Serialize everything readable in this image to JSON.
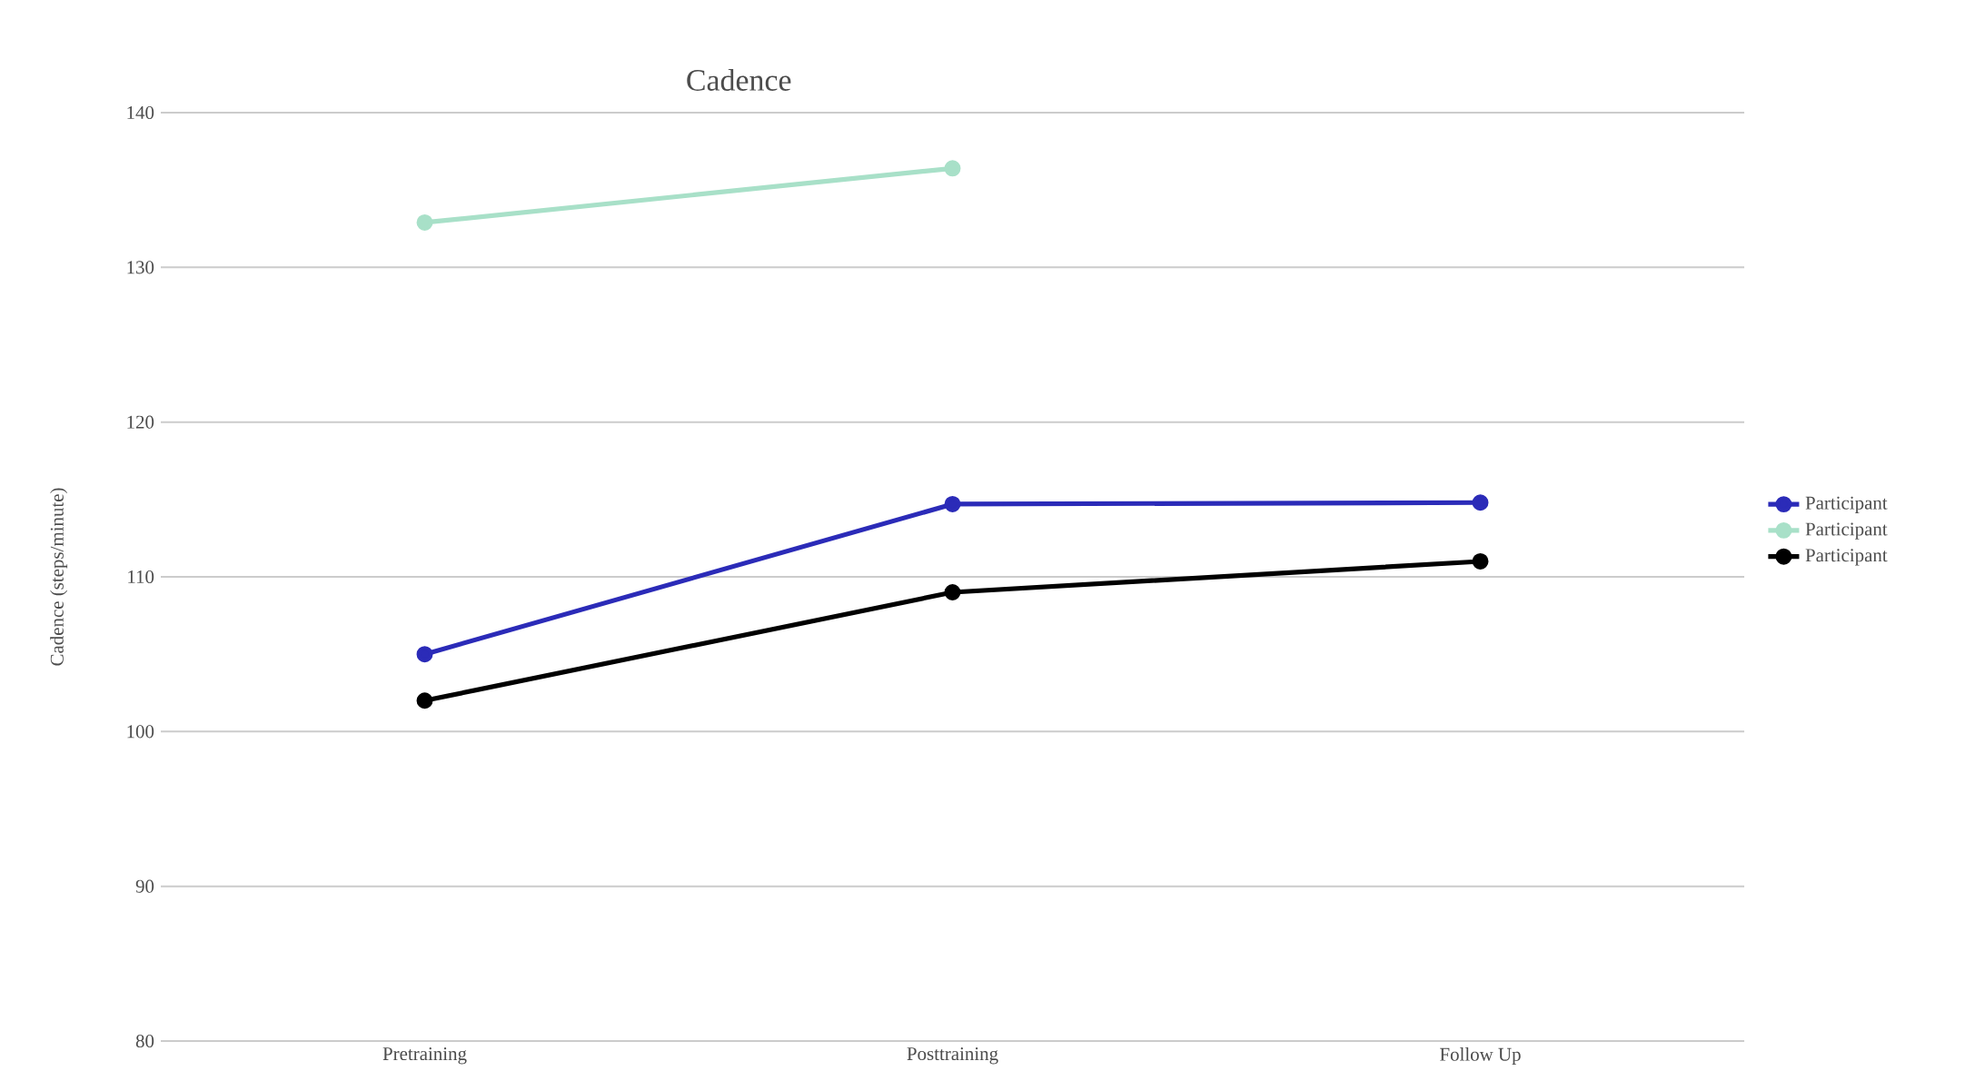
{
  "chart_data": {
    "type": "line",
    "title": "Cadence",
    "ylabel": "Cadence (steps/minute)",
    "categories": [
      "Pretraining",
      "Posttraining",
      "Follow Up"
    ],
    "series": [
      {
        "name": "Participant",
        "color": "#2b2bb8",
        "values": [
          105.0,
          114.7,
          114.8
        ]
      },
      {
        "name": "Participant",
        "color": "#a8e0c8",
        "values": [
          132.9,
          136.4,
          null
        ]
      },
      {
        "name": "Participant",
        "color": "#000000",
        "values": [
          102.0,
          109.0,
          111.0
        ]
      }
    ],
    "ylim": [
      80,
      140
    ],
    "yticks": [
      80,
      90,
      100,
      110,
      120,
      130,
      140
    ],
    "grid": "y",
    "legend": "right",
    "marker": "circle",
    "line_style": "solid"
  }
}
